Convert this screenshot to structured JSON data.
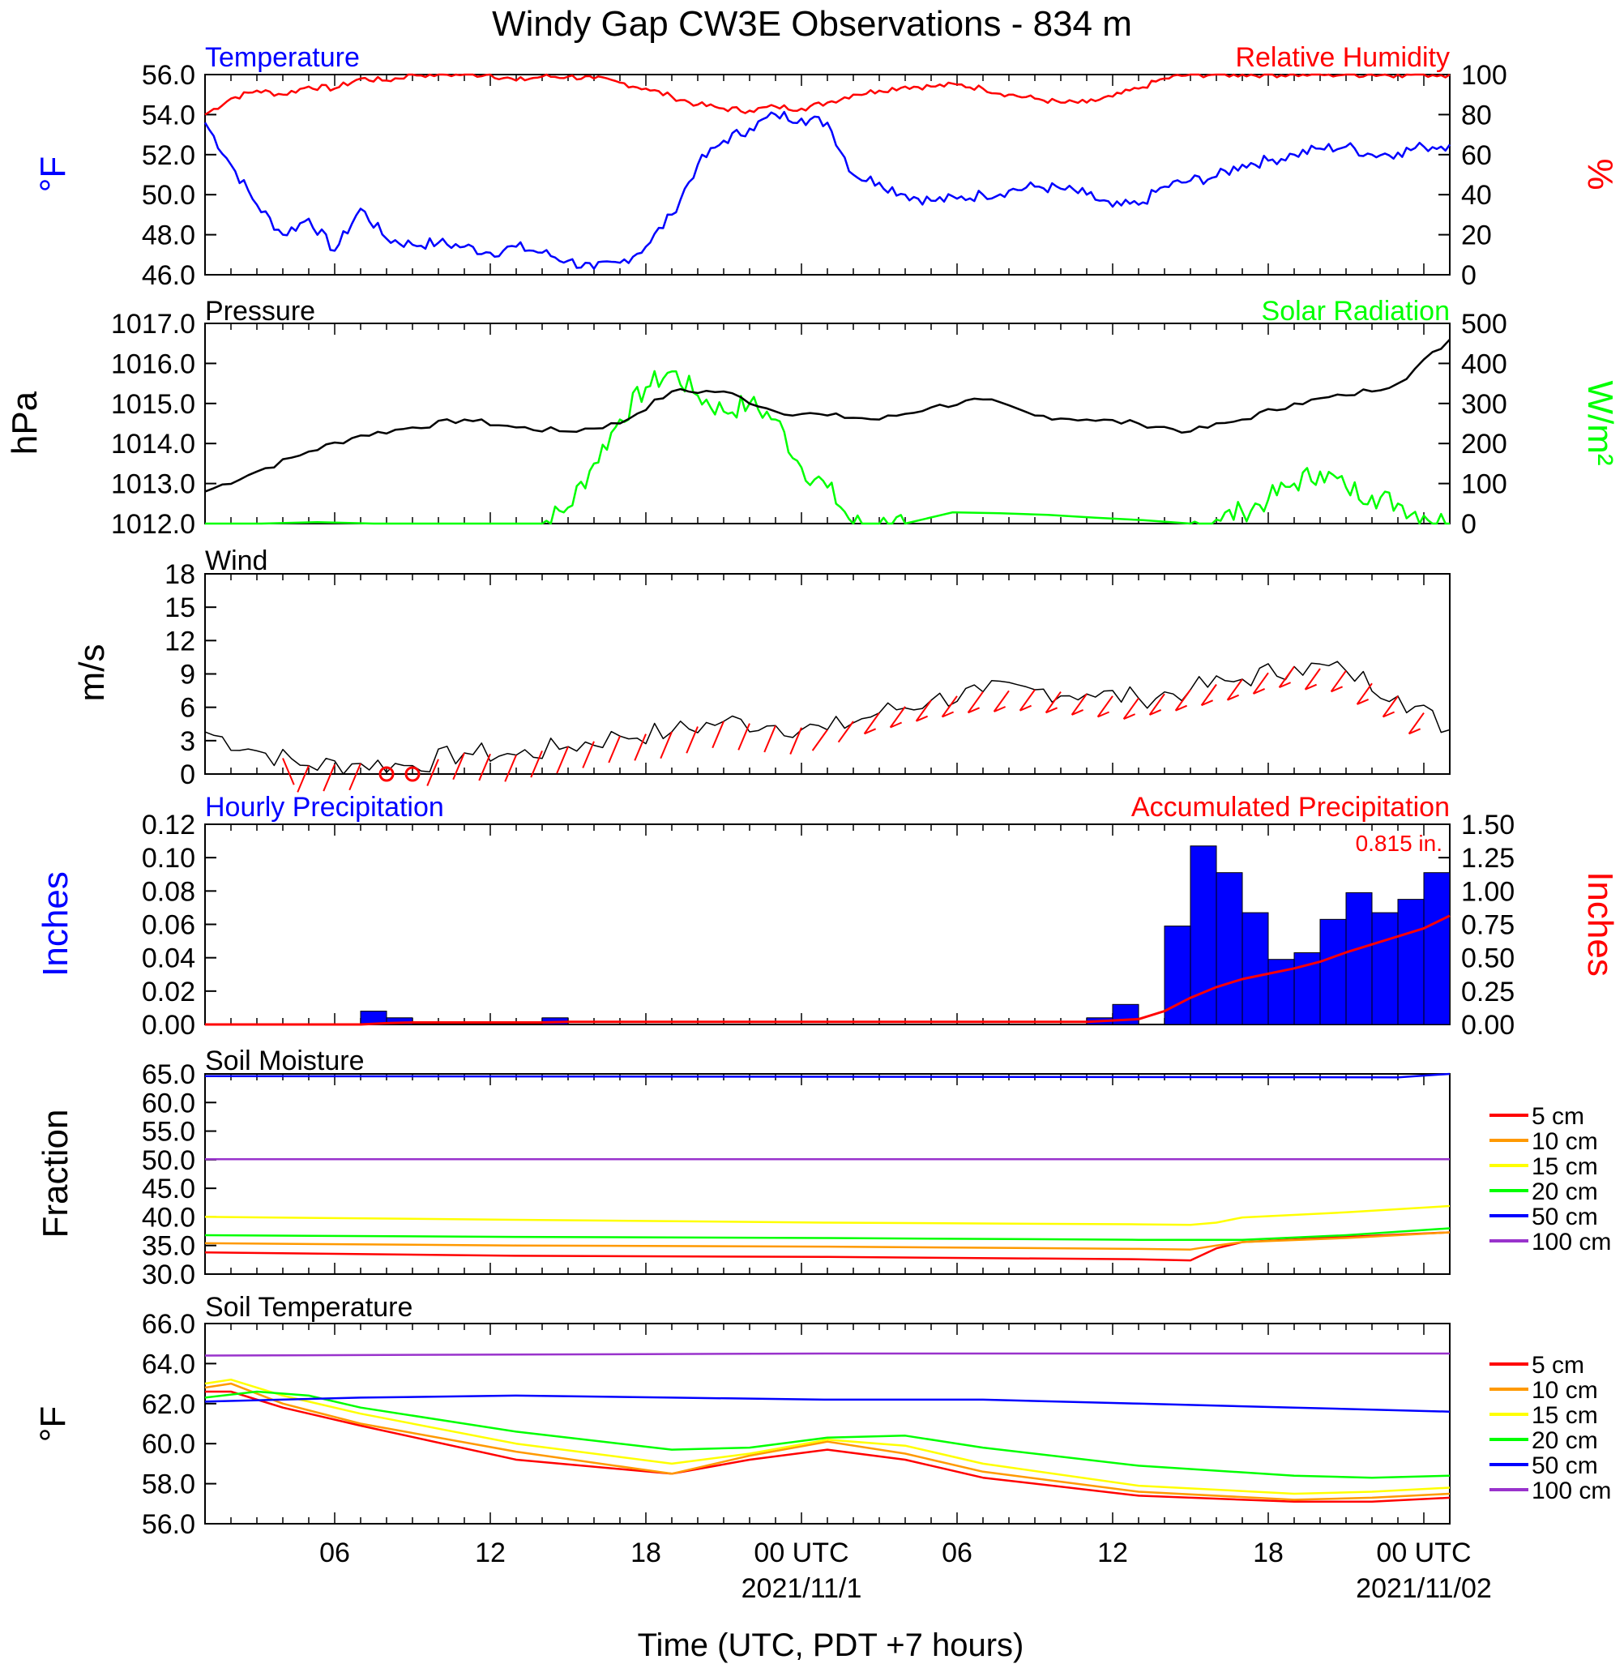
{
  "title": "Windy Gap CW3E Observations - 834 m",
  "x_axis": {
    "label": "Time (UTC, PDT +7 hours)",
    "tick_labels": [
      "06",
      "12",
      "18",
      "00 UTC",
      "06",
      "12",
      "18",
      "00 UTC"
    ],
    "date_labels": [
      "2021/11/1",
      "2021/11/02"
    ]
  },
  "colors": {
    "temperature": "#0000ff",
    "humidity": "#ff0000",
    "pressure": "#000000",
    "solar": "#00ff00",
    "wind": "#000000",
    "barbs": "#ff0000",
    "hourly_precip": "#0000ff",
    "accum_precip": "#ff0000",
    "depth_5": "#ff0000",
    "depth_10": "#ff9900",
    "depth_15": "#ffff00",
    "depth_20": "#00ff00",
    "depth_50": "#0000ff",
    "depth_100": "#9933cc"
  },
  "panels": {
    "temp_rh": {
      "left_title": "Temperature",
      "right_title": "Relative Humidity",
      "left_unit": "°F",
      "right_unit": "%",
      "left_ticks": [
        "46.0",
        "48.0",
        "50.0",
        "52.0",
        "54.0",
        "56.0"
      ],
      "right_ticks": [
        "0",
        "20",
        "40",
        "60",
        "80",
        "100"
      ]
    },
    "pressure_solar": {
      "left_title": "Pressure",
      "right_title": "Solar Radiation",
      "left_unit": "hPa",
      "right_unit": "W/m²",
      "left_ticks": [
        "1012.0",
        "1013.0",
        "1014.0",
        "1015.0",
        "1016.0",
        "1017.0"
      ],
      "right_ticks": [
        "0",
        "100",
        "200",
        "300",
        "400",
        "500"
      ]
    },
    "wind": {
      "left_title": "Wind",
      "left_unit": "m/s",
      "left_ticks": [
        "0",
        "3",
        "6",
        "9",
        "12",
        "15",
        "18"
      ]
    },
    "precip": {
      "left_title": "Hourly Precipitation",
      "right_title": "Accumulated Precipitation",
      "left_unit": "Inches",
      "right_unit": "Inches",
      "total_label": "0.815 in.",
      "left_ticks": [
        "0.00",
        "0.02",
        "0.04",
        "0.06",
        "0.08",
        "0.10",
        "0.12"
      ],
      "right_ticks": [
        "0.00",
        "0.25",
        "0.50",
        "0.75",
        "1.00",
        "1.25",
        "1.50"
      ]
    },
    "soil_moisture": {
      "left_title": "Soil Moisture",
      "left_unit": "Fraction",
      "left_ticks": [
        "30.0",
        "35.0",
        "40.0",
        "45.0",
        "50.0",
        "55.0",
        "60.0",
        "65.0"
      ],
      "legend": [
        "5 cm",
        "10 cm",
        "15 cm",
        "20 cm",
        "50 cm",
        "100 cm"
      ]
    },
    "soil_temp": {
      "left_title": "Soil Temperature",
      "left_unit": "°F",
      "left_ticks": [
        "56.0",
        "58.0",
        "60.0",
        "62.0",
        "64.0",
        "66.0"
      ],
      "legend": [
        "5 cm",
        "10 cm",
        "15 cm",
        "20 cm",
        "50 cm",
        "100 cm"
      ]
    }
  },
  "chart_data": [
    {
      "type": "line",
      "title": "Temperature / Relative Humidity",
      "x_unit": "hours since 2021-10-31 01:00 UTC",
      "ylim": [
        46,
        56
      ],
      "y2lim": [
        0,
        100
      ],
      "series": [
        {
          "name": "Temperature",
          "axis": "left",
          "x": [
            0,
            1,
            2,
            3,
            4,
            5,
            6,
            7,
            8,
            9,
            10,
            11,
            12,
            13,
            14,
            15,
            16,
            17,
            18,
            19,
            20,
            21,
            22,
            23,
            24,
            25,
            26,
            27,
            28,
            29,
            30,
            31,
            32,
            33,
            34,
            35,
            36,
            37,
            38,
            39,
            40,
            41,
            42,
            43,
            44,
            45,
            46,
            47,
            48
          ],
          "y": [
            53.6,
            51.5,
            49.5,
            48.0,
            48.8,
            47.2,
            49.3,
            47.8,
            47.5,
            47.6,
            47.4,
            47.1,
            47.4,
            47.1,
            46.7,
            46.3,
            46.6,
            47.4,
            49.0,
            51.5,
            52.7,
            53.3,
            54.0,
            53.8,
            53.6,
            51.0,
            50.6,
            50.0,
            49.7,
            49.8,
            50.0,
            50.2,
            50.4,
            50.3,
            50.0,
            49.4,
            49.5,
            50.4,
            50.7,
            50.9,
            51.5,
            51.7,
            52.0,
            52.3,
            52.4,
            52.0,
            52.1,
            52.4,
            52.5
          ]
        },
        {
          "name": "Relative Humidity",
          "axis": "right",
          "x": [
            0,
            1,
            2,
            3,
            4,
            5,
            6,
            7,
            8,
            9,
            10,
            11,
            12,
            13,
            14,
            15,
            16,
            17,
            18,
            19,
            20,
            21,
            22,
            23,
            24,
            25,
            26,
            27,
            28,
            29,
            30,
            31,
            32,
            33,
            34,
            35,
            36,
            37,
            38,
            39,
            40,
            41,
            42,
            43,
            44,
            45,
            46,
            47,
            48
          ],
          "y": [
            80,
            88,
            92,
            90,
            94,
            93,
            98,
            97,
            100,
            100,
            100,
            100,
            97,
            99,
            99,
            98,
            96,
            93,
            89,
            85,
            83,
            82,
            84,
            83,
            86,
            90,
            92,
            94,
            94,
            95,
            93,
            90,
            88,
            86,
            86,
            89,
            93,
            98,
            100,
            100,
            100,
            100,
            100,
            100,
            100,
            100,
            100,
            100,
            100
          ]
        }
      ]
    },
    {
      "type": "line",
      "title": "Pressure / Solar Radiation",
      "x_unit": "hours since 2021-10-31 01:00 UTC",
      "ylim": [
        1012,
        1017
      ],
      "y2lim": [
        0,
        500
      ],
      "series": [
        {
          "name": "Pressure",
          "axis": "left",
          "x": [
            0,
            2,
            4,
            6,
            8,
            10,
            12,
            14,
            16,
            18,
            20,
            22,
            24,
            26,
            28,
            30,
            32,
            34,
            36,
            38,
            40,
            42,
            44,
            46,
            48
          ],
          "y": [
            1012.8,
            1013.3,
            1013.8,
            1014.2,
            1014.4,
            1014.6,
            1014.4,
            1014.3,
            1014.5,
            1015.3,
            1015.3,
            1014.8,
            1014.7,
            1014.6,
            1014.9,
            1015.1,
            1014.7,
            1014.6,
            1014.5,
            1014.3,
            1014.6,
            1015.0,
            1015.2,
            1015.5,
            1016.6
          ]
        },
        {
          "name": "Solar Radiation",
          "axis": "right",
          "x": [
            0,
            13,
            14,
            15,
            16,
            17,
            18,
            19,
            20,
            21,
            22,
            23,
            24,
            25,
            26,
            27,
            38,
            39,
            40,
            41,
            42,
            43,
            44,
            45,
            46,
            47,
            48
          ],
          "y": [
            0,
            0,
            40,
            150,
            260,
            340,
            380,
            320,
            280,
            300,
            260,
            140,
            90,
            0,
            0,
            0,
            0,
            10,
            30,
            60,
            100,
            130,
            90,
            70,
            50,
            20,
            0
          ]
        }
      ]
    },
    {
      "type": "line",
      "title": "Wind",
      "x_unit": "hours since 2021-10-31 01:00 UTC",
      "ylim": [
        0,
        19
      ],
      "series": [
        {
          "name": "Wind",
          "axis": "left",
          "x": [
            0,
            2,
            4,
            6,
            8,
            10,
            12,
            14,
            16,
            18,
            20,
            22,
            24,
            26,
            28,
            30,
            32,
            34,
            36,
            38,
            40,
            42,
            44,
            46,
            48
          ],
          "y": [
            4.0,
            2.2,
            0.8,
            1.0,
            0.8,
            2.0,
            1.8,
            2.6,
            3.6,
            4.0,
            5.0,
            4.6,
            4.2,
            5.8,
            7.0,
            7.8,
            8.0,
            7.6,
            7.2,
            8.0,
            9.0,
            10.2,
            9.8,
            7.4,
            4.2
          ]
        }
      ]
    },
    {
      "type": "bar",
      "title": "Hourly / Accumulated Precipitation",
      "x_unit": "hours since 2021-10-31 01:00 UTC",
      "ylim": [
        0,
        0.12
      ],
      "y2lim": [
        0,
        1.5
      ],
      "series": [
        {
          "name": "Hourly Precipitation",
          "axis": "left",
          "x": [
            6,
            7,
            13,
            34,
            35,
            37,
            38,
            39,
            40,
            41,
            42,
            43,
            44,
            45,
            46,
            47
          ],
          "y": [
            0.008,
            0.004,
            0.004,
            0.004,
            0.012,
            0.059,
            0.107,
            0.091,
            0.067,
            0.039,
            0.043,
            0.063,
            0.079,
            0.067,
            0.075,
            0.091
          ]
        },
        {
          "name": "Accumulated Precipitation",
          "axis": "right",
          "x": [
            0,
            6,
            7,
            8,
            13,
            14,
            34,
            35,
            36,
            37,
            38,
            39,
            40,
            41,
            42,
            43,
            44,
            45,
            46,
            47,
            48
          ],
          "y": [
            0,
            0,
            0.01,
            0.015,
            0.015,
            0.02,
            0.02,
            0.03,
            0.04,
            0.1,
            0.2,
            0.28,
            0.34,
            0.38,
            0.42,
            0.47,
            0.54,
            0.6,
            0.66,
            0.72,
            0.815
          ]
        }
      ]
    },
    {
      "type": "line",
      "title": "Soil Moisture",
      "x_unit": "hours since 2021-10-31 01:00 UTC",
      "ylim": [
        30,
        65
      ],
      "series": [
        {
          "name": "5 cm",
          "x": [
            0,
            12,
            24,
            36,
            38,
            39,
            40,
            44,
            48
          ],
          "y": [
            33.8,
            33.2,
            33.0,
            32.6,
            32.4,
            34.5,
            35.6,
            36.5,
            37.3
          ]
        },
        {
          "name": "10 cm",
          "x": [
            0,
            12,
            24,
            36,
            38,
            39,
            40,
            44,
            48
          ],
          "y": [
            35.4,
            35.0,
            34.8,
            34.4,
            34.3,
            35.0,
            35.6,
            36.3,
            37.3
          ]
        },
        {
          "name": "15 cm",
          "x": [
            0,
            12,
            24,
            36,
            38,
            39,
            40,
            44,
            48
          ],
          "y": [
            40.0,
            39.5,
            39.0,
            38.7,
            38.6,
            39.0,
            39.9,
            40.8,
            41.9
          ]
        },
        {
          "name": "20 cm",
          "x": [
            0,
            12,
            24,
            36,
            40,
            44,
            48
          ],
          "y": [
            36.8,
            36.5,
            36.3,
            36.0,
            36.0,
            36.8,
            38.0
          ]
        },
        {
          "name": "50 cm",
          "x": [
            0,
            24,
            46,
            48
          ],
          "y": [
            64.6,
            64.5,
            64.4,
            65.0
          ]
        },
        {
          "name": "100 cm",
          "x": [
            0,
            48
          ],
          "y": [
            50.1,
            50.1
          ]
        }
      ]
    },
    {
      "type": "line",
      "title": "Soil Temperature",
      "x_unit": "hours since 2021-10-31 01:00 UTC",
      "ylim": [
        56,
        66
      ],
      "series": [
        {
          "name": "5 cm",
          "x": [
            0,
            1,
            3,
            6,
            12,
            18,
            21,
            24,
            27,
            30,
            36,
            42,
            45,
            48
          ],
          "y": [
            62.6,
            62.6,
            61.8,
            60.9,
            59.2,
            58.5,
            59.2,
            59.7,
            59.2,
            58.3,
            57.4,
            57.1,
            57.1,
            57.3
          ]
        },
        {
          "name": "10 cm",
          "x": [
            0,
            1,
            3,
            6,
            12,
            18,
            21,
            24,
            27,
            30,
            36,
            42,
            45,
            48
          ],
          "y": [
            62.8,
            63.0,
            62.0,
            61.0,
            59.6,
            58.5,
            59.4,
            60.1,
            59.5,
            58.6,
            57.6,
            57.2,
            57.3,
            57.5
          ]
        },
        {
          "name": "15 cm",
          "x": [
            0,
            1,
            3,
            6,
            12,
            18,
            21,
            24,
            27,
            30,
            36,
            42,
            45,
            48
          ],
          "y": [
            63.0,
            63.2,
            62.4,
            61.5,
            60.0,
            59.0,
            59.5,
            60.2,
            59.9,
            59.0,
            57.9,
            57.5,
            57.6,
            57.8
          ]
        },
        {
          "name": "20 cm",
          "x": [
            0,
            2,
            4,
            6,
            12,
            18,
            21,
            24,
            27,
            30,
            36,
            42,
            45,
            48
          ],
          "y": [
            62.3,
            62.6,
            62.4,
            61.8,
            60.6,
            59.7,
            59.8,
            60.3,
            60.4,
            59.8,
            58.9,
            58.4,
            58.3,
            58.4
          ]
        },
        {
          "name": "50 cm",
          "x": [
            0,
            6,
            12,
            18,
            24,
            30,
            36,
            42,
            48
          ],
          "y": [
            62.1,
            62.3,
            62.4,
            62.3,
            62.2,
            62.2,
            62.0,
            61.8,
            61.6
          ]
        },
        {
          "name": "100 cm",
          "x": [
            0,
            24,
            48
          ],
          "y": [
            64.4,
            64.5,
            64.5
          ]
        }
      ]
    }
  ]
}
